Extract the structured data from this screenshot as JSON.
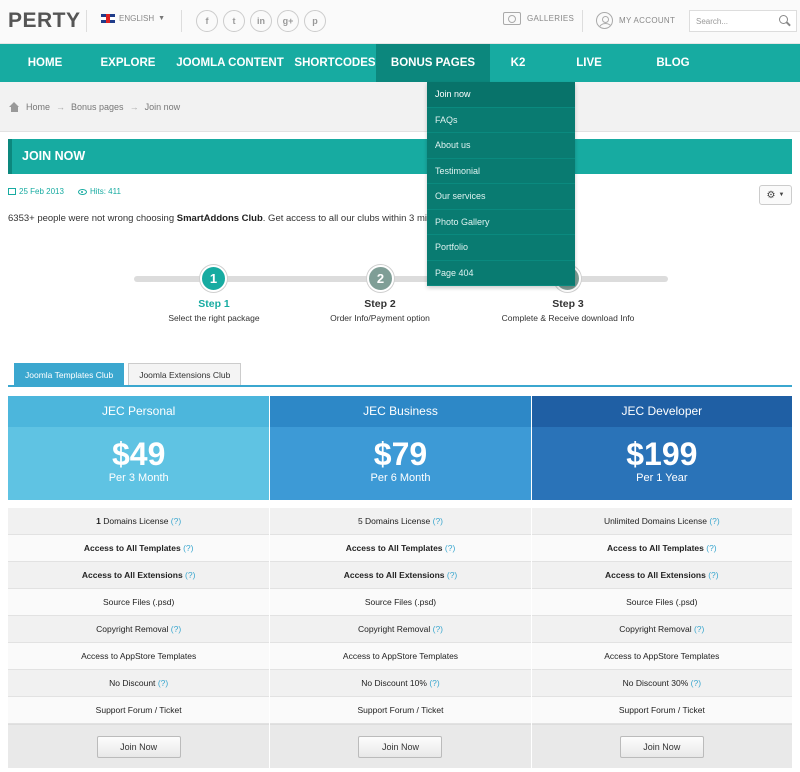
{
  "header": {
    "logo": "PERTY",
    "language": "ENGLISH",
    "socials": [
      {
        "name": "facebook-icon",
        "glyph": "f"
      },
      {
        "name": "twitter-icon",
        "glyph": "t"
      },
      {
        "name": "linkedin-icon",
        "glyph": "in"
      },
      {
        "name": "googleplus-icon",
        "glyph": "g+"
      },
      {
        "name": "pinterest-icon",
        "glyph": "p"
      }
    ],
    "galleries": "GALLERIES",
    "my_account": "MY ACCOUNT",
    "search_placeholder": "Search..."
  },
  "nav": {
    "items": [
      {
        "label": "HOME",
        "active": false
      },
      {
        "label": "EXPLORE",
        "active": false
      },
      {
        "label": "JOOMLA CONTENT",
        "active": false
      },
      {
        "label": "SHORTCODES",
        "active": false
      },
      {
        "label": "BONUS PAGES",
        "active": true
      },
      {
        "label": "K2",
        "active": false
      },
      {
        "label": "LIVE",
        "active": false
      },
      {
        "label": "BLOG",
        "active": false
      }
    ]
  },
  "dropdown": {
    "items": [
      "Join now",
      "FAQs",
      "About us",
      "Testimonial",
      "Our services",
      "Photo Gallery",
      "Portfolio",
      "Page 404"
    ]
  },
  "breadcrumb": {
    "home": "Home",
    "section": "Bonus pages",
    "current": "Join now"
  },
  "page": {
    "title": "JOIN NOW",
    "date": "25 Feb 2013",
    "hits": "Hits: 411",
    "intro_prefix": "6353+ people were not wrong choosing ",
    "intro_bold": "SmartAddons Club",
    "intro_suffix": ". Get access to all our clubs within 3 minutes"
  },
  "steps": [
    {
      "num": "1",
      "title": "Step 1",
      "subtitle": "Select the right package"
    },
    {
      "num": "2",
      "title": "Step 2",
      "subtitle": "Order Info/Payment option"
    },
    {
      "num": "3",
      "title": "Step 3",
      "subtitle": "Complete & Receive download Info"
    }
  ],
  "tabs": [
    {
      "label": "Joomla Templates Club",
      "active": true
    },
    {
      "label": "Joomla Extensions Club",
      "active": false
    }
  ],
  "plans": [
    {
      "name": "JEC Personal",
      "price": "$49",
      "period": "Per 3 Month",
      "head_color": "#4cb6dc",
      "price_color": "#5fc3e3",
      "features": [
        {
          "text": "1 Domains License",
          "q": true
        },
        {
          "text": "Access to All Templates",
          "q": true
        },
        {
          "text": "Access to All Extensions",
          "q": true
        },
        {
          "text": "Source Files (.psd)",
          "q": false
        },
        {
          "text": "Copyright Removal",
          "q": true
        },
        {
          "text": "Access to AppStore Templates",
          "q": false
        },
        {
          "text": "No Discount",
          "q": true
        },
        {
          "text": "Support Forum / Ticket",
          "q": false
        }
      ],
      "button": "Join Now"
    },
    {
      "name": "JEC Business",
      "price": "$79",
      "period": "Per 6 Month",
      "head_color": "#2d88c7",
      "price_color": "#3d9ad6",
      "features": [
        {
          "text": "5 Domains License",
          "q": true
        },
        {
          "text": "Access to All Templates",
          "q": true
        },
        {
          "text": "Access to All Extensions",
          "q": true
        },
        {
          "text": "Source Files (.psd)",
          "q": false
        },
        {
          "text": "Copyright Removal",
          "q": true
        },
        {
          "text": "Access to AppStore Templates",
          "q": false
        },
        {
          "text": "No Discount 10%",
          "q": true
        },
        {
          "text": "Support Forum / Ticket",
          "q": false
        }
      ],
      "button": "Join Now"
    },
    {
      "name": "JEC Developer",
      "price": "$199",
      "period": "Per 1 Year",
      "head_color": "#1f5fa4",
      "price_color": "#2a73b8",
      "features": [
        {
          "text": "Unlimited Domains License",
          "q": true
        },
        {
          "text": "Access to All Templates",
          "q": true
        },
        {
          "text": "Access to All Extensions",
          "q": true
        },
        {
          "text": "Source Files (.psd)",
          "q": false
        },
        {
          "text": "Copyright Removal",
          "q": true
        },
        {
          "text": "Access to AppStore Templates",
          "q": false
        },
        {
          "text": "No Discount 30%",
          "q": true
        },
        {
          "text": "Support Forum / Ticket",
          "q": false
        }
      ],
      "button": "Join Now"
    }
  ],
  "help_mark": "(?)"
}
